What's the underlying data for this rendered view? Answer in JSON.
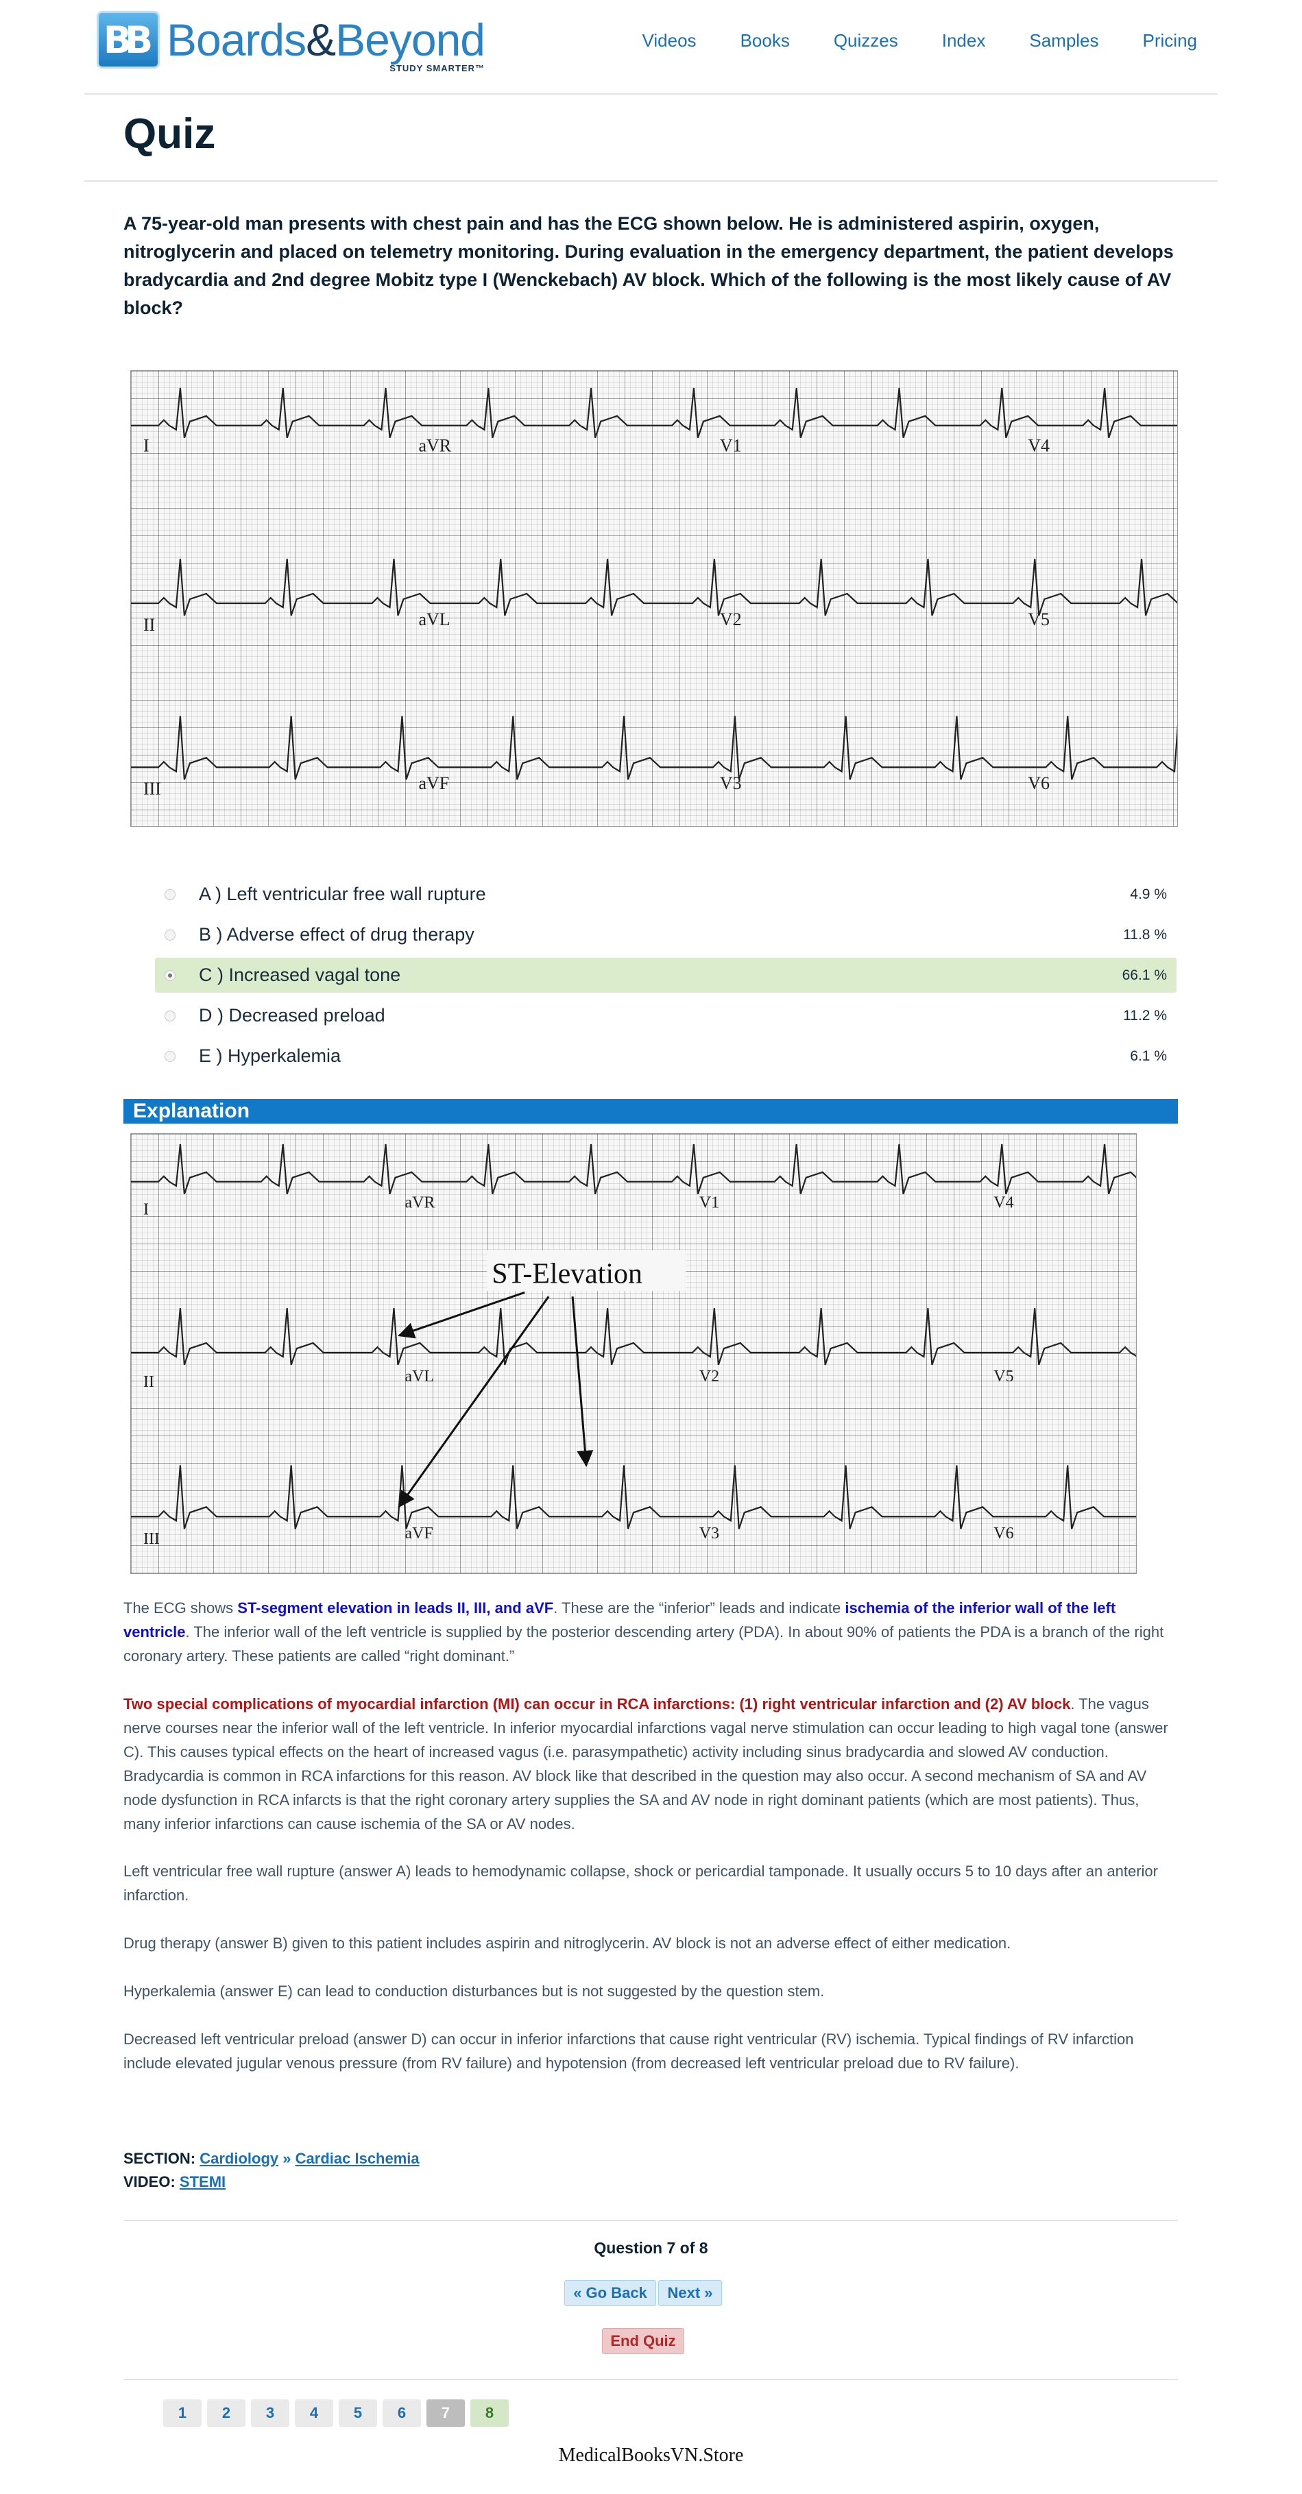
{
  "header": {
    "logo_mark": "BB",
    "logo_name_1": "Boards",
    "logo_amp": "&",
    "logo_name_2": "Beyond",
    "logo_tag": "STUDY SMARTER™",
    "nav": [
      "Videos",
      "Books",
      "Quizzes",
      "Index",
      "Samples",
      "Pricing"
    ]
  },
  "page_title": "Quiz",
  "question": "A 75-year-old man presents with chest pain and has the ECG shown below. He is administered aspirin, oxygen, nitroglycerin and placed on telemetry monitoring. During evaluation in the emergency department, the patient develops bradycardia and 2nd degree Mobitz type I (Wenckebach) AV block. Which of the following is the most likely cause of AV block?",
  "ecg_leads": {
    "row1": [
      "I",
      "aVR",
      "V1",
      "V4"
    ],
    "row2": [
      "II",
      "aVL",
      "V2",
      "V5"
    ],
    "row3": [
      "III",
      "aVF",
      "V3",
      "V6"
    ]
  },
  "options": [
    {
      "label": "A ) Left ventricular free wall rupture",
      "percent": "4.9 %",
      "selected": false
    },
    {
      "label": "B ) Adverse effect of drug therapy",
      "percent": "11.8 %",
      "selected": false
    },
    {
      "label": "C ) Increased vagal tone",
      "percent": "66.1 %",
      "selected": true
    },
    {
      "label": "D ) Decreased preload",
      "percent": "11.2 %",
      "selected": false
    },
    {
      "label": "E ) Hyperkalemia",
      "percent": "6.1 %",
      "selected": false
    }
  ],
  "explanation": {
    "heading": "Explanation",
    "figure_annotation": "ST-Elevation",
    "p1": {
      "t1": "The ECG shows ",
      "b1": "ST-segment elevation in leads II, III, and aVF",
      "t2": ". These are the “inferior” leads and indicate ",
      "b2": "ischemia of the inferior wall of the left ventricle",
      "t3": ". The inferior wall of the left ventricle is supplied by the posterior descending artery (PDA). In about 90% of patients the PDA is a branch of the right coronary artery. These patients are called “right dominant.”"
    },
    "p2": {
      "r1": "Two special complications of myocardial infarction (MI) can occur in RCA infarctions: (1) right ventricular infarction and (2) AV block",
      "t1": ". The vagus nerve courses near the inferior wall of the left ventricle. In inferior myocardial infarctions vagal nerve stimulation can occur leading to high vagal tone (answer C). This causes typical effects on the heart of increased vagus (i.e. parasympathetic) activity including sinus bradycardia and slowed AV conduction. Bradycardia is common in RCA infarctions for this reason. AV block like that described in the question may also occur. A second mechanism of SA and AV node dysfunction in RCA infarcts is that the right coronary artery supplies the SA and AV node in right dominant patients (which are most patients). Thus, many inferior infarctions can cause ischemia of the SA or AV nodes."
    },
    "p3": "Left ventricular free wall rupture (answer A) leads to hemodynamic collapse, shock or pericardial tamponade. It usually occurs 5 to 10 days after an anterior infarction.",
    "p4": "Drug therapy (answer B) given to this patient includes aspirin and nitroglycerin. AV block is not an adverse effect of either medication.",
    "p5": "Hyperkalemia (answer E) can lead to conduction disturbances but is not suggested by the question stem.",
    "p6": "Decreased left ventricular preload (answer D) can occur in inferior infarctions that cause right ventricular (RV) ischemia. Typical findings of RV infarction include elevated jugular venous pressure (from RV failure) and hypotension (from decreased left ventricular preload due to RV failure)."
  },
  "section": {
    "section_label": "SECTION:",
    "section_link_1": "Cardiology",
    "section_sep": "»",
    "section_link_2": "Cardiac Ischemia",
    "video_label": "VIDEO:",
    "video_link": "STEMI"
  },
  "navigation": {
    "question_count": "Question 7 of 8",
    "back_label": "« Go Back",
    "next_label": "Next »",
    "end_label": "End Quiz",
    "pages": [
      {
        "n": "1",
        "state": "normal"
      },
      {
        "n": "2",
        "state": "normal"
      },
      {
        "n": "3",
        "state": "normal"
      },
      {
        "n": "4",
        "state": "normal"
      },
      {
        "n": "5",
        "state": "normal"
      },
      {
        "n": "6",
        "state": "normal"
      },
      {
        "n": "7",
        "state": "current"
      },
      {
        "n": "8",
        "state": "done"
      }
    ]
  },
  "footer": "MedicalBooksVN.Store",
  "colors": {
    "accent": "#1279c8",
    "selected_bg": "#dbeccd",
    "highlight_blue": "#1111cc",
    "highlight_red": "#b01616"
  }
}
